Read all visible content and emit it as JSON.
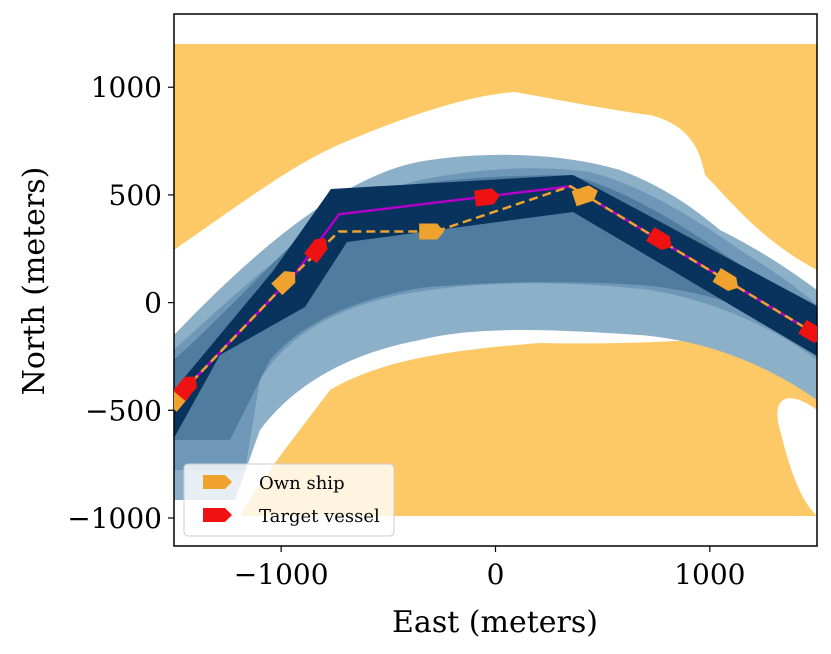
{
  "chart_data": {
    "type": "map",
    "xlabel": "East (meters)",
    "ylabel": "North (meters)",
    "xlim": [
      -1500,
      1500
    ],
    "ylim": [
      -1130,
      1340
    ],
    "xticks": [
      {
        "value": -1000,
        "label": "−1000"
      },
      {
        "value": 0,
        "label": "0"
      },
      {
        "value": 1000,
        "label": "1000"
      }
    ],
    "yticks": [
      {
        "value": 1000,
        "label": "1000"
      },
      {
        "value": 500,
        "label": "500"
      },
      {
        "value": 0,
        "label": "0"
      },
      {
        "value": -500,
        "label": "−500"
      },
      {
        "value": -1000,
        "label": "−1000"
      }
    ],
    "land_extent": {
      "x": [
        -1500,
        1500
      ],
      "y": [
        -1000,
        1200
      ]
    },
    "colors": {
      "land": "#fdc967",
      "shallow": "#8db0c9",
      "mid": "#6f97b7",
      "deep": "#507c9f",
      "channel": "#08335c",
      "target_path": "#b300c9",
      "own_path": "#f0a22e",
      "own_ship": "#f0a22e",
      "target_vessel": "#ee1212"
    },
    "target_path": [
      [
        -1500,
        -470
      ],
      [
        -1400,
        -350
      ],
      [
        -930,
        140
      ],
      [
        -730,
        410
      ],
      [
        350,
        540
      ],
      [
        1500,
        -150
      ]
    ],
    "own_path": [
      [
        -1500,
        -470
      ],
      [
        -1400,
        -350
      ],
      [
        -930,
        140
      ],
      [
        -730,
        330
      ],
      [
        -280,
        330
      ],
      [
        350,
        540
      ],
      [
        1500,
        -150
      ]
    ],
    "own_ships": [
      [
        -1480,
        -440
      ],
      [
        -980,
        100
      ],
      [
        -300,
        330
      ],
      [
        420,
        500
      ],
      [
        1080,
        100
      ]
    ],
    "target_vessels": [
      [
        -1440,
        -390
      ],
      [
        -830,
        250
      ],
      [
        -40,
        490
      ],
      [
        770,
        290
      ],
      [
        1480,
        -140
      ]
    ],
    "legend": {
      "position": "lower-left",
      "entries": [
        {
          "label": "Own ship",
          "color": "#f0a22e"
        },
        {
          "label": "Target vessel",
          "color": "#ee1212"
        }
      ]
    }
  }
}
